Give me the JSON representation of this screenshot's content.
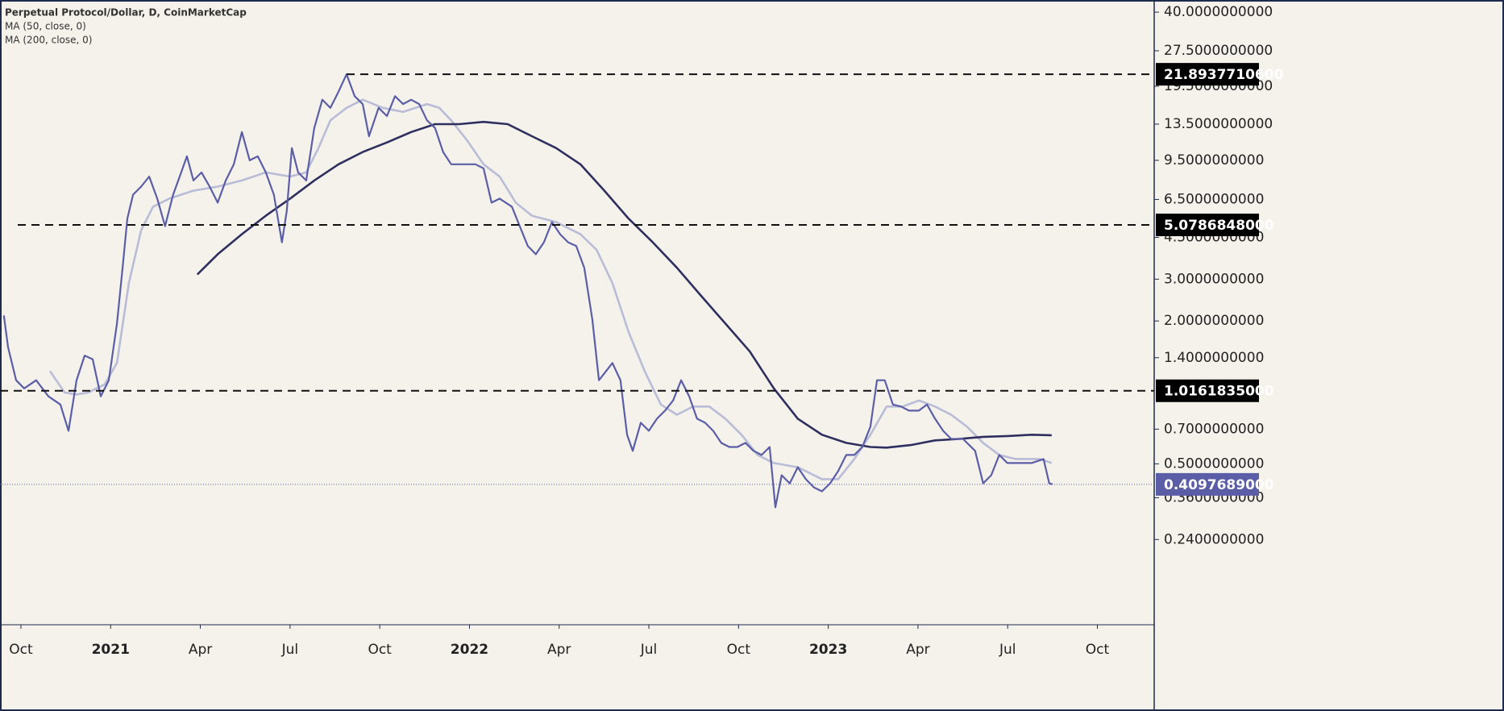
{
  "chart_data": {
    "type": "line",
    "title": "Perpetual Protocol/Dollar, D, CoinMarketCap",
    "log_y": true,
    "grid": false,
    "xlim": [
      -0.7,
      37.9
    ],
    "xticks": [
      {
        "value": 0,
        "label": "Oct"
      },
      {
        "value": 3,
        "label": "2021"
      },
      {
        "value": 6,
        "label": "Apr"
      },
      {
        "value": 9,
        "label": "Jul"
      },
      {
        "value": 12,
        "label": "Oct"
      },
      {
        "value": 15,
        "label": "2022"
      },
      {
        "value": 18,
        "label": "Apr"
      },
      {
        "value": 21,
        "label": "Jul"
      },
      {
        "value": 24,
        "label": "Oct"
      },
      {
        "value": 27,
        "label": "2023"
      },
      {
        "value": 30,
        "label": "Apr"
      },
      {
        "value": 33,
        "label": "Jul"
      },
      {
        "value": 36,
        "label": "Oct"
      }
    ],
    "ylim": [
      0.105,
      45
    ],
    "yticks": [
      {
        "value": 40,
        "label": "40.0000000000"
      },
      {
        "value": 27.5,
        "label": "27.5000000000"
      },
      {
        "value": 19.5,
        "label": "19.5000000000"
      },
      {
        "value": 13.5,
        "label": "13.5000000000"
      },
      {
        "value": 9.5,
        "label": "9.5000000000"
      },
      {
        "value": 6.5,
        "label": "6.5000000000"
      },
      {
        "value": 4.5,
        "label": "4.5000000000"
      },
      {
        "value": 3,
        "label": "3.0000000000"
      },
      {
        "value": 2,
        "label": "2.0000000000"
      },
      {
        "value": 1.4,
        "label": "1.4000000000"
      },
      {
        "value": 0.7,
        "label": "0.7000000000"
      },
      {
        "value": 0.5,
        "label": "0.5000000000"
      },
      {
        "value": 0.36,
        "label": "0.3600000000"
      },
      {
        "value": 0.24,
        "label": "0.2400000000"
      }
    ],
    "levels": [
      {
        "value": 21.89377106,
        "label": "21.8937710600"
      },
      {
        "value": 5.0786848,
        "label": "5.0786848000"
      },
      {
        "value": 1.0161835,
        "label": "1.0161835000"
      }
    ],
    "last_price": {
      "value": 0.4097689,
      "label": "0.4097689000",
      "color": "#5b5ea6"
    },
    "series": [
      {
        "color": "#5b5ea6",
        "x": [
          -0.57,
          -0.43,
          -0.16,
          0.11,
          0.51,
          0.92,
          1.32,
          1.59,
          1.86,
          2.13,
          2.4,
          2.67,
          2.94,
          3.21,
          3.4,
          3.56,
          3.75,
          4.02,
          4.29,
          4.56,
          4.82,
          5.09,
          5.36,
          5.55,
          5.77,
          6.04,
          6.31,
          6.58,
          6.85,
          7.12,
          7.39,
          7.65,
          7.92,
          8.19,
          8.46,
          8.73,
          8.89,
          9.06,
          9.27,
          9.54,
          9.81,
          10.08,
          10.35,
          10.62,
          10.89,
          11.16,
          11.43,
          11.64,
          11.96,
          12.24,
          12.51,
          12.78,
          13.05,
          13.32,
          13.58,
          13.85,
          14.12,
          14.39,
          14.8,
          15.2,
          15.47,
          15.74,
          16.01,
          16.42,
          16.68,
          16.95,
          17.22,
          17.49,
          17.76,
          18.03,
          18.3,
          18.57,
          18.84,
          19.11,
          19.33,
          19.57,
          19.78,
          20.05,
          20.27,
          20.46,
          20.73,
          21.0,
          21.27,
          21.54,
          21.81,
          22.08,
          22.35,
          22.61,
          22.88,
          23.15,
          23.42,
          23.69,
          23.96,
          24.23,
          24.5,
          24.77,
          25.04,
          25.23,
          25.44,
          25.71,
          25.98,
          26.25,
          26.52,
          26.79,
          27.06,
          27.33,
          27.6,
          27.87,
          28.14,
          28.41,
          28.63,
          28.89,
          29.16,
          29.43,
          29.7,
          30.03,
          30.3,
          30.57,
          30.84,
          31.11,
          31.51,
          31.91,
          32.18,
          32.45,
          32.72,
          32.99,
          33.26,
          33.53,
          33.8,
          34.2,
          34.39,
          34.5
        ],
        "values": [
          2.11,
          1.55,
          1.125,
          1.04,
          1.125,
          0.962,
          0.889,
          0.689,
          1.125,
          1.43,
          1.38,
          0.962,
          1.125,
          1.95,
          3.35,
          5.4,
          6.81,
          7.36,
          8.12,
          6.55,
          5.02,
          6.81,
          8.45,
          9.88,
          7.81,
          8.45,
          7.36,
          6.3,
          7.81,
          9.14,
          12.5,
          9.5,
          9.88,
          8.45,
          6.81,
          4.29,
          5.82,
          10.7,
          8.45,
          7.81,
          13.0,
          17.1,
          15.8,
          18.5,
          21.9,
          17.7,
          16.4,
          12.0,
          15.8,
          14.6,
          17.7,
          16.4,
          17.1,
          16.4,
          14.0,
          13.0,
          10.3,
          9.14,
          9.14,
          9.14,
          8.79,
          6.3,
          6.55,
          6.06,
          5.02,
          4.14,
          3.82,
          4.29,
          5.22,
          4.64,
          4.29,
          4.14,
          3.35,
          2.03,
          1.125,
          1.23,
          1.33,
          1.125,
          0.663,
          0.567,
          0.745,
          0.689,
          0.775,
          0.838,
          0.925,
          1.125,
          0.962,
          0.775,
          0.745,
          0.689,
          0.613,
          0.589,
          0.589,
          0.613,
          0.567,
          0.545,
          0.589,
          0.328,
          0.448,
          0.414,
          0.484,
          0.431,
          0.398,
          0.383,
          0.414,
          0.466,
          0.545,
          0.545,
          0.589,
          0.717,
          1.125,
          1.125,
          0.889,
          0.872,
          0.838,
          0.838,
          0.889,
          0.775,
          0.689,
          0.637,
          0.637,
          0.567,
          0.414,
          0.448,
          0.545,
          0.504,
          0.504,
          0.504,
          0.504,
          0.524,
          0.414,
          0.41
        ]
      },
      {
        "name": "MA (50, close, 0)",
        "color": "#b9bcd6",
        "x": [
          0.97,
          1.46,
          1.86,
          2.26,
          2.8,
          3.21,
          3.61,
          4.02,
          4.42,
          4.96,
          5.77,
          6.58,
          7.39,
          8.19,
          9.0,
          9.54,
          9.95,
          10.35,
          10.89,
          11.43,
          12.1,
          12.78,
          13.58,
          13.99,
          14.39,
          14.93,
          15.47,
          16.01,
          16.55,
          17.09,
          17.9,
          18.71,
          19.25,
          19.78,
          20.32,
          20.86,
          21.4,
          21.94,
          22.48,
          23.02,
          23.56,
          24.1,
          24.64,
          25.18,
          25.98,
          26.79,
          27.33,
          27.87,
          28.41,
          28.95,
          29.49,
          30.03,
          30.57,
          31.11,
          31.64,
          32.18,
          32.72,
          33.26,
          34.07,
          34.47
        ],
        "values": [
          1.23,
          1.0,
          0.98,
          1.0,
          1.08,
          1.33,
          2.89,
          4.82,
          6.06,
          6.55,
          7.08,
          7.36,
          7.81,
          8.45,
          8.12,
          8.45,
          10.7,
          14.0,
          15.8,
          17.1,
          15.8,
          15.2,
          16.4,
          15.8,
          14.0,
          11.5,
          9.14,
          8.12,
          6.3,
          5.55,
          5.22,
          4.64,
          3.99,
          2.89,
          1.8,
          1.23,
          0.889,
          0.805,
          0.872,
          0.872,
          0.775,
          0.663,
          0.545,
          0.504,
          0.484,
          0.431,
          0.431,
          0.524,
          0.663,
          0.872,
          0.872,
          0.925,
          0.872,
          0.805,
          0.717,
          0.613,
          0.545,
          0.524,
          0.524,
          0.504
        ]
      },
      {
        "name": "MA (200, close, 0)",
        "color": "#2e2f5e",
        "x": [
          5.9,
          6.58,
          7.39,
          8.19,
          9.0,
          9.81,
          10.62,
          11.43,
          12.24,
          13.05,
          13.85,
          14.66,
          15.47,
          16.28,
          17.09,
          17.9,
          18.71,
          19.51,
          20.32,
          21.13,
          21.94,
          22.75,
          23.56,
          24.37,
          25.18,
          25.98,
          26.79,
          27.6,
          28.41,
          28.95,
          29.76,
          30.57,
          31.37,
          32.18,
          32.99,
          33.8,
          34.47
        ],
        "values": [
          3.14,
          3.82,
          4.64,
          5.55,
          6.55,
          7.81,
          9.14,
          10.3,
          11.3,
          12.5,
          13.5,
          13.5,
          13.8,
          13.5,
          12.0,
          10.7,
          9.14,
          7.08,
          5.4,
          4.29,
          3.35,
          2.55,
          1.95,
          1.49,
          1.04,
          0.775,
          0.663,
          0.613,
          0.589,
          0.585,
          0.6,
          0.628,
          0.637,
          0.65,
          0.655,
          0.663,
          0.66
        ]
      }
    ]
  }
}
